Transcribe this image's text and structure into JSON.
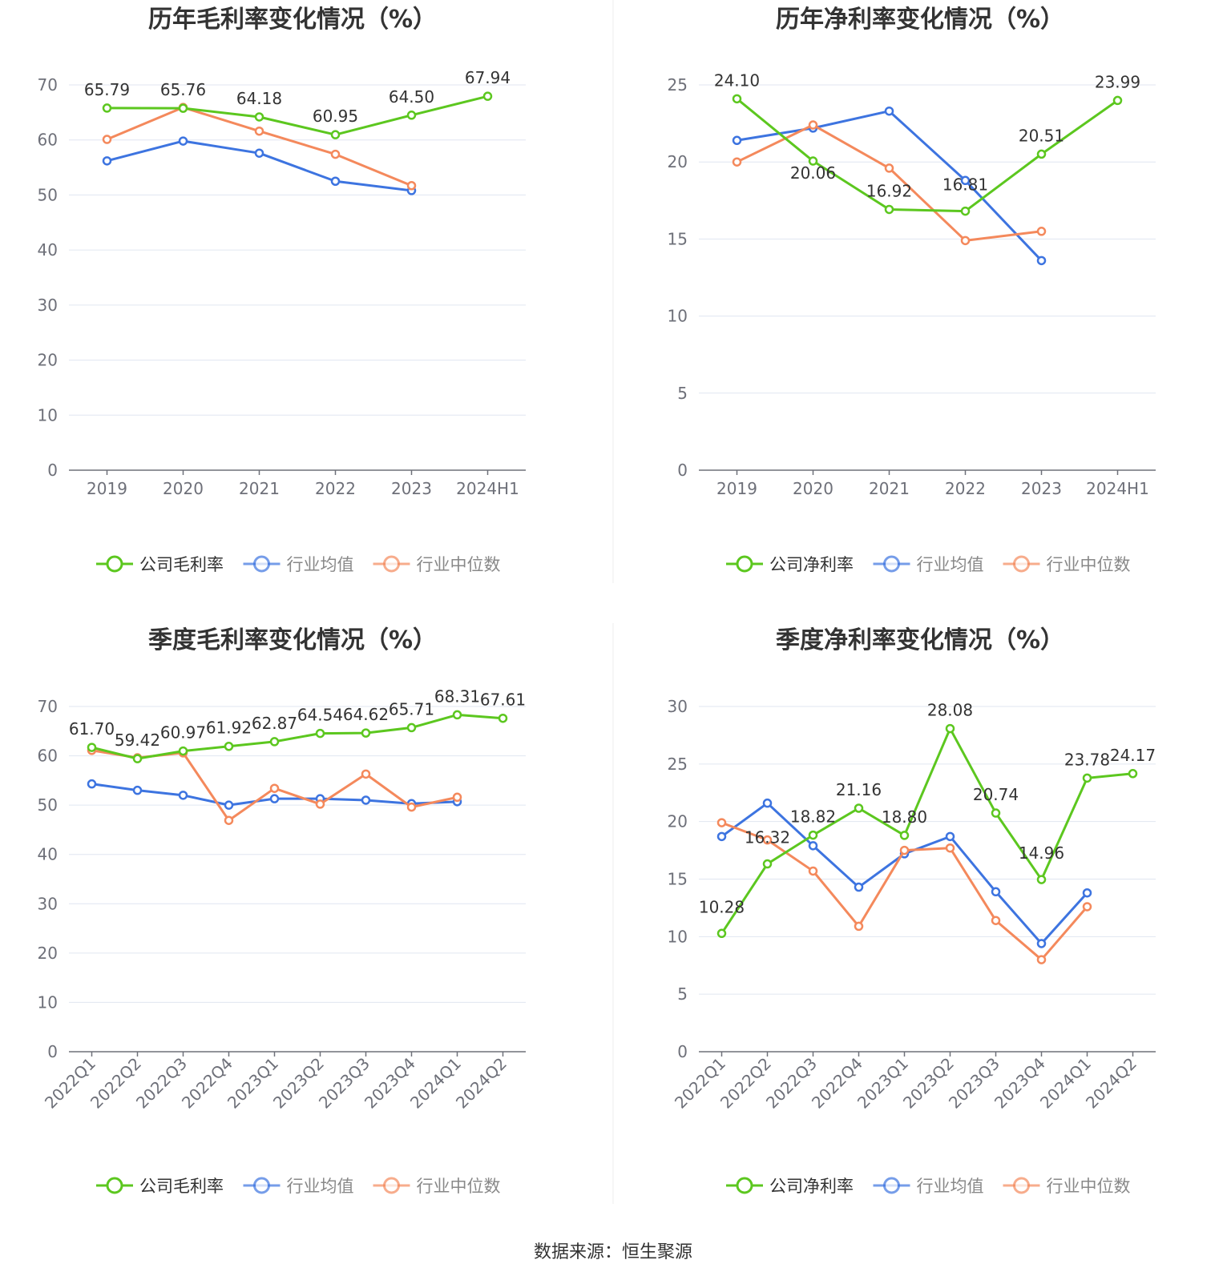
{
  "source": "数据来源：恒生聚源",
  "colors": {
    "company": "#5cc71f",
    "avg": "#3d74e0",
    "median": "#f4895c",
    "grid": "#e0e6f1",
    "axis": "#6e7079"
  },
  "chart_data": [
    {
      "id": "annual-gross",
      "type": "line",
      "title": "历年毛利率变化情况（%）",
      "categories": [
        "2019",
        "2020",
        "2021",
        "2022",
        "2023",
        "2024H1"
      ],
      "ylim": [
        0,
        70
      ],
      "yticks": [
        0,
        10,
        20,
        30,
        40,
        50,
        60,
        70
      ],
      "grid": true,
      "legend": "bottom",
      "series": [
        {
          "name": "公司毛利率",
          "color": "#5cc71f",
          "labels": true,
          "values": [
            65.79,
            65.76,
            64.18,
            60.95,
            64.5,
            67.94
          ],
          "display": [
            "65.79",
            "65.76",
            "64.18",
            "60.95",
            "64.50",
            "67.94"
          ]
        },
        {
          "name": "行业均值",
          "color": "#3d74e0",
          "values": [
            56.2,
            59.8,
            57.6,
            52.5,
            50.8,
            null
          ]
        },
        {
          "name": "行业中位数",
          "color": "#f4895c",
          "values": [
            60.1,
            65.9,
            61.6,
            57.4,
            51.7,
            null
          ]
        }
      ]
    },
    {
      "id": "annual-net",
      "type": "line",
      "title": "历年净利率变化情况（%）",
      "categories": [
        "2019",
        "2020",
        "2021",
        "2022",
        "2023",
        "2024H1"
      ],
      "ylim": [
        0,
        25
      ],
      "yticks": [
        0,
        5,
        10,
        15,
        20,
        25
      ],
      "grid": true,
      "legend": "bottom",
      "series": [
        {
          "name": "公司净利率",
          "color": "#5cc71f",
          "labels": true,
          "values": [
            24.1,
            20.06,
            16.92,
            16.81,
            20.51,
            23.99
          ],
          "display": [
            "24.10",
            "20.06",
            "16.92",
            "16.81",
            "20.51",
            "23.99"
          ]
        },
        {
          "name": "行业均值",
          "color": "#3d74e0",
          "values": [
            21.4,
            22.2,
            23.3,
            18.8,
            13.6,
            null
          ]
        },
        {
          "name": "行业中位数",
          "color": "#f4895c",
          "values": [
            20.0,
            22.4,
            19.6,
            14.9,
            15.5,
            null
          ]
        }
      ]
    },
    {
      "id": "quarterly-gross",
      "type": "line",
      "title": "季度毛利率变化情况（%）",
      "categories": [
        "2022Q1",
        "2022Q2",
        "2022Q3",
        "2022Q4",
        "2023Q1",
        "2023Q2",
        "2023Q3",
        "2023Q4",
        "2024Q1",
        "2024Q2"
      ],
      "ylim": [
        0,
        70
      ],
      "yticks": [
        0,
        10,
        20,
        30,
        40,
        50,
        60,
        70
      ],
      "grid": true,
      "legend": "bottom",
      "rotated_ticks": true,
      "series": [
        {
          "name": "公司毛利率",
          "color": "#5cc71f",
          "labels": true,
          "values": [
            61.7,
            59.42,
            60.97,
            61.92,
            62.87,
            64.54,
            64.62,
            65.71,
            68.31,
            67.61
          ],
          "display": [
            "61.70",
            "59.42",
            "60.97",
            "61.92",
            "62.87",
            "64.54",
            "64.62",
            "65.71",
            "68.31",
            "67.61"
          ]
        },
        {
          "name": "行业均值",
          "color": "#3d74e0",
          "values": [
            54.3,
            53.0,
            52.0,
            50.0,
            51.3,
            51.3,
            51.0,
            50.3,
            50.7,
            null
          ]
        },
        {
          "name": "行业中位数",
          "color": "#f4895c",
          "values": [
            61.1,
            59.6,
            60.6,
            46.9,
            53.4,
            50.2,
            56.3,
            49.6,
            51.6,
            null
          ]
        }
      ]
    },
    {
      "id": "quarterly-net",
      "type": "line",
      "title": "季度净利率变化情况（%）",
      "categories": [
        "2022Q1",
        "2022Q2",
        "2022Q3",
        "2022Q4",
        "2023Q1",
        "2023Q2",
        "2023Q3",
        "2023Q4",
        "2024Q1",
        "2024Q2"
      ],
      "ylim": [
        0,
        30
      ],
      "yticks": [
        0,
        5,
        10,
        15,
        20,
        25,
        30
      ],
      "grid": true,
      "legend": "bottom",
      "rotated_ticks": true,
      "series": [
        {
          "name": "公司净利率",
          "color": "#5cc71f",
          "labels": true,
          "values": [
            10.28,
            16.32,
            18.82,
            21.16,
            18.8,
            28.08,
            20.74,
            14.96,
            23.78,
            24.17
          ],
          "display": [
            "10.28",
            "16.32",
            "18.82",
            "21.16",
            "18.80",
            "28.08",
            "20.74",
            "14.96",
            "23.78",
            "24.17"
          ]
        },
        {
          "name": "行业均值",
          "color": "#3d74e0",
          "values": [
            18.7,
            21.6,
            17.9,
            14.3,
            17.2,
            18.7,
            13.9,
            9.4,
            13.8,
            null
          ]
        },
        {
          "name": "行业中位数",
          "color": "#f4895c",
          "values": [
            19.9,
            18.4,
            15.7,
            10.9,
            17.5,
            17.7,
            11.4,
            8.0,
            12.6,
            null
          ]
        }
      ]
    }
  ]
}
